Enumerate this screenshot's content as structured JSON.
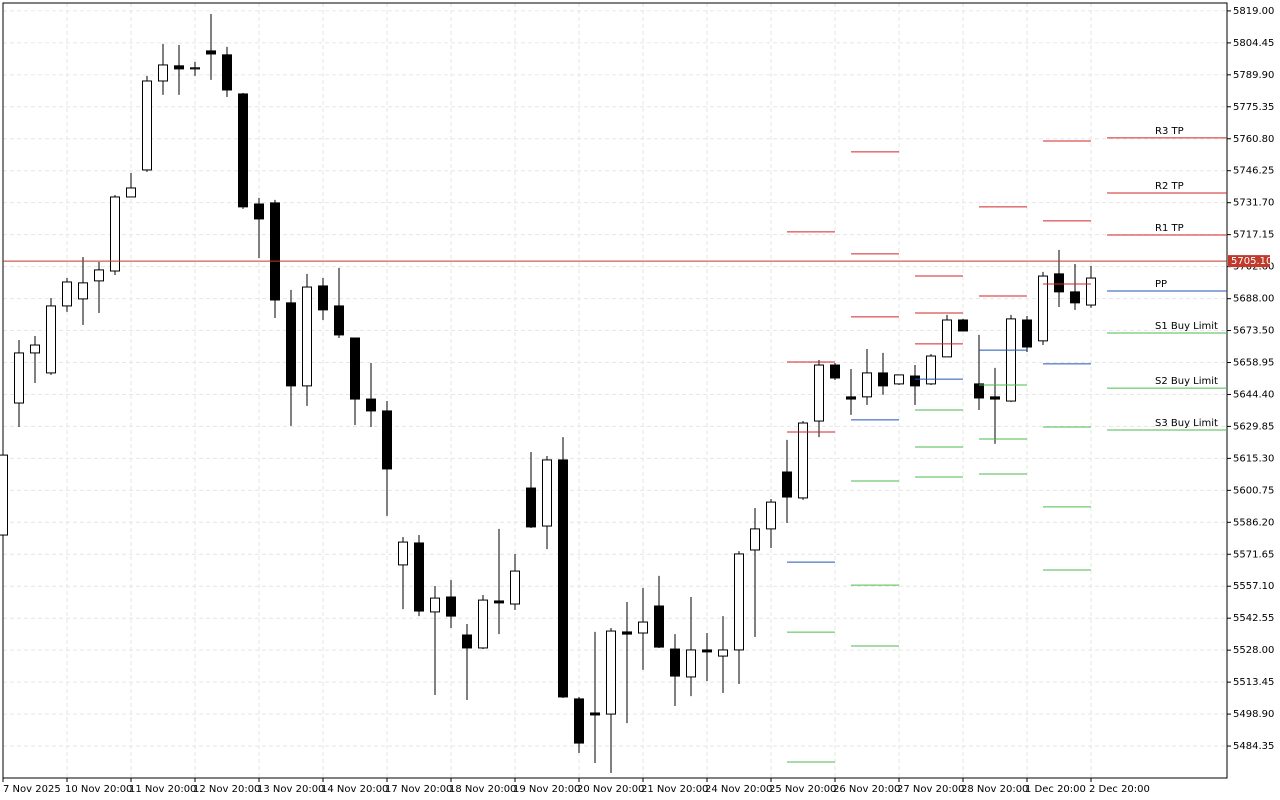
{
  "chart_data": {
    "type": "candlestick",
    "categories": [
      "7 Nov 2025",
      null,
      null,
      null,
      "10 Nov 20:00",
      null,
      null,
      null,
      "11 Nov 20:00",
      null,
      null,
      null,
      "12 Nov 20:00",
      null,
      null,
      null,
      "13 Nov 20:00",
      null,
      null,
      null,
      "14 Nov 20:00",
      null,
      null,
      null,
      "17 Nov 20:00",
      null,
      null,
      null,
      "18 Nov 20:00",
      null,
      null,
      null,
      "19 Nov 20:00",
      null,
      null,
      null,
      "20 Nov 20:00",
      null,
      null,
      null,
      "21 Nov 20:00",
      null,
      null,
      null,
      "24 Nov 20:00",
      null,
      null,
      null,
      "25 Nov 20:00",
      null,
      null,
      null,
      "26 Nov 20:00",
      null,
      null,
      null,
      "27 Nov 20:00",
      null,
      null,
      null,
      "28 Nov 20:00",
      null,
      null,
      null,
      "1 Dec 20:00",
      null,
      null,
      null,
      "2 Dec 20:00"
    ],
    "open": [
      5580.4,
      5640.5,
      5663.3,
      5654.2,
      5684.7,
      5687.9,
      5696.1,
      5700.6,
      5734.3,
      5746.6,
      5787.1,
      5794.0,
      5792.6,
      5800.8,
      5799.0,
      5781.2,
      5731.1,
      5731.6,
      5686.1,
      5648.3,
      5693.8,
      5684.7,
      5670.1,
      5642.3,
      5636.9,
      5566.8,
      5576.8,
      5545.4,
      5552.2,
      5534.9,
      5529.0,
      5550.4,
      5549.0,
      5601.8,
      5584.5,
      5614.6,
      5505.8,
      5499.4,
      5498.9,
      5536.3,
      5535.8,
      5548.1,
      5528.5,
      5515.8,
      5528.1,
      5525.3,
      5528.1,
      5573.6,
      5583.2,
      5609.1,
      5597.3,
      5632.3,
      5657.8,
      5643.3,
      5643.3,
      5654.2,
      5649.2,
      5652.8,
      5649.2,
      5661.5,
      5678.3,
      5649.2,
      5643.3,
      5641.4,
      5678.3,
      5668.8,
      5699.3,
      5691.1,
      5685.1
    ],
    "high": [
      5616.8,
      5669.2,
      5671.0,
      5688.3,
      5697.4,
      5707.0,
      5704.7,
      5735.2,
      5745.2,
      5789.4,
      5804.0,
      5803.5,
      5795.8,
      5817.6,
      5802.6,
      5781.7,
      5733.9,
      5733.0,
      5692.0,
      5699.3,
      5697.4,
      5702.0,
      5670.1,
      5658.7,
      5641.4,
      5579.5,
      5580.4,
      5557.2,
      5559.9,
      5539.9,
      5553.1,
      5583.2,
      5571.8,
      5618.2,
      5616.4,
      5625.0,
      5506.7,
      5536.3,
      5538.1,
      5549.9,
      5556.3,
      5561.8,
      5535.3,
      5552.2,
      5535.8,
      5543.5,
      5573.1,
      5592.7,
      5596.8,
      5623.7,
      5632.3,
      5660.1,
      5658.7,
      5656.0,
      5665.1,
      5663.3,
      5653.3,
      5657.8,
      5662.8,
      5680.6,
      5678.8,
      5671.5,
      5656.5,
      5680.6,
      5680.1,
      5700.2,
      5710.2,
      5703.8,
      5702.9
    ],
    "low": [
      5580.4,
      5629.6,
      5649.6,
      5653.3,
      5682.0,
      5676.0,
      5681.5,
      5698.8,
      5734.3,
      5745.7,
      5780.8,
      5780.8,
      5789.4,
      5787.6,
      5779.8,
      5728.9,
      5706.5,
      5679.2,
      5630.1,
      5639.2,
      5678.3,
      5670.1,
      5630.5,
      5629.6,
      5589.1,
      5546.7,
      5543.5,
      5507.6,
      5538.1,
      5505.3,
      5528.5,
      5535.3,
      5546.3,
      5583.6,
      5574.0,
      5506.2,
      5481.2,
      5476.6,
      5472.1,
      5494.8,
      5519.0,
      5529.0,
      5502.6,
      5507.1,
      5513.9,
      5508.5,
      5512.6,
      5534.0,
      5574.5,
      5585.9,
      5596.4,
      5625.0,
      5651.0,
      5635.1,
      5639.6,
      5644.2,
      5648.7,
      5639.6,
      5648.7,
      5661.5,
      5673.3,
      5637.3,
      5621.9,
      5641.0,
      5663.7,
      5666.9,
      5684.2,
      5682.9,
      5683.8
    ],
    "close": [
      5616.8,
      5663.3,
      5666.9,
      5684.7,
      5695.6,
      5695.2,
      5701.1,
      5734.3,
      5738.4,
      5787.1,
      5794.4,
      5792.6,
      5793.1,
      5799.4,
      5783.0,
      5729.8,
      5724.3,
      5687.4,
      5648.3,
      5693.3,
      5682.9,
      5671.5,
      5642.3,
      5636.9,
      5610.5,
      5577.2,
      5545.8,
      5551.7,
      5543.5,
      5529.0,
      5550.8,
      5549.5,
      5564.0,
      5584.1,
      5614.6,
      5506.7,
      5485.7,
      5498.5,
      5536.7,
      5535.3,
      5540.8,
      5529.4,
      5516.2,
      5528.1,
      5527.2,
      5528.1,
      5571.8,
      5583.2,
      5595.4,
      5597.7,
      5631.4,
      5657.8,
      5651.9,
      5642.3,
      5654.2,
      5648.3,
      5653.3,
      5648.3,
      5661.9,
      5678.3,
      5673.3,
      5642.8,
      5642.3,
      5678.8,
      5666.0,
      5698.3,
      5691.1,
      5686.1,
      5697.4
    ],
    "levels": [
      {
        "name": "R3 TP",
        "color": "#d0262a",
        "values": [
          5718.4,
          5754.8,
          5698.3,
          5729.8,
          5759.8,
          5761.2
        ]
      },
      {
        "name": "R2 TP",
        "color": "#d0262a",
        "values": [
          5659.2,
          5708.4,
          5681.5,
          5689.2,
          5723.4,
          5736.1
        ]
      },
      {
        "name": "R1 TP",
        "color": "#d0262a",
        "values": [
          5627.3,
          5679.7,
          5667.4,
          null,
          5694.7,
          5717.0
        ]
      },
      {
        "name": "PP",
        "color": "#1f56b0",
        "values": [
          5568.1,
          5632.8,
          5651.4,
          5664.6,
          5658.3,
          5691.5
        ]
      },
      {
        "name": "S1 Buy Limit",
        "color": "#4cbb4c",
        "values": [
          5536.2,
          5605.0,
          5637.3,
          5648.7,
          5629.6,
          5672.4
        ]
      },
      {
        "name": "S2 Buy Limit",
        "color": "#4cbb4c",
        "values": [
          5477.1,
          5557.6,
          5620.5,
          5624.1,
          5593.2,
          5647.3
        ]
      },
      {
        "name": "S3 Buy Limit",
        "color": "#4cbb4c",
        "values": [
          null,
          5529.9,
          5606.8,
          5608.2,
          5564.5,
          5628.2
        ]
      }
    ],
    "last_price": {
      "value": 5705.1,
      "label": "5705.10"
    },
    "ylim": [
      5469.8,
      5822.6
    ],
    "yticks": [
      5484.35,
      {
        "value": 5498.9,
        "label": "5498.90"
      },
      5513.45,
      {
        "value": 5528,
        "label": "5528.00"
      },
      5542.55,
      {
        "value": 5557.1,
        "label": "5557.10"
      },
      5571.65,
      {
        "value": 5586.2,
        "label": "5586.20"
      },
      5600.75,
      {
        "value": 5615.3,
        "label": "5615.30"
      },
      5629.85,
      {
        "value": 5644.4,
        "label": "5644.40"
      },
      5658.95,
      {
        "value": 5673.5,
        "label": "5673.50"
      },
      {
        "value": 5688,
        "label": "5688.00"
      },
      {
        "value": 5702.6,
        "label": "5702.60"
      },
      5717.15,
      {
        "value": 5731.7,
        "label": "5731.70"
      },
      5746.25,
      {
        "value": 5760.8,
        "label": "5760.80"
      },
      5775.35,
      {
        "value": 5789.9,
        "label": "5789.90"
      },
      5804.45,
      {
        "value": 5819,
        "label": "5819.00"
      }
    ],
    "grid": true,
    "up_color": "#ffffff",
    "down_color": "#000000"
  }
}
